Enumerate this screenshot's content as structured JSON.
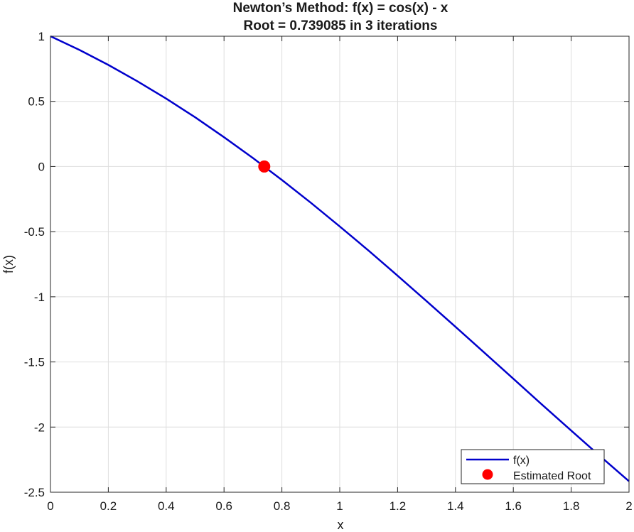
{
  "chart_data": {
    "type": "line",
    "title": [
      "Newton’s Method: f(x) = cos(x) - x",
      "Root = 0.739085 in 3 iterations"
    ],
    "xlabel": "x",
    "ylabel": "f(x)",
    "xlim": [
      0,
      2
    ],
    "ylim": [
      -2.5,
      1
    ],
    "xticks": [
      0,
      0.2,
      0.4,
      0.6,
      0.8,
      1,
      1.2,
      1.4,
      1.6,
      1.8,
      2
    ],
    "xtick_labels": [
      "0",
      "0.2",
      "0.4",
      "0.6",
      "0.8",
      "1",
      "1.2",
      "1.4",
      "1.6",
      "1.8",
      "2"
    ],
    "yticks": [
      1,
      0.5,
      0,
      -0.5,
      -1,
      -1.5,
      -2,
      -2.5
    ],
    "ytick_labels": [
      "1",
      "0.5",
      "0",
      "-0.5",
      "-1",
      "-1.5",
      "-2",
      "-2.5"
    ],
    "grid": true,
    "legend_position": "bottom-right",
    "series": [
      {
        "name": "f(x)",
        "style": "line",
        "color": "#0000cc",
        "x": [
          0,
          0.1,
          0.2,
          0.3,
          0.4,
          0.5,
          0.6,
          0.7,
          0.8,
          0.9,
          1.0,
          1.1,
          1.2,
          1.3,
          1.4,
          1.5,
          1.6,
          1.7,
          1.8,
          1.9,
          2.0
        ],
        "y": [
          1.0,
          0.895,
          0.78,
          0.655,
          0.521,
          0.378,
          0.225,
          0.065,
          -0.103,
          -0.278,
          -0.46,
          -0.646,
          -0.838,
          -1.033,
          -1.23,
          -1.429,
          -1.629,
          -1.829,
          -2.027,
          -2.223,
          -2.416
        ]
      },
      {
        "name": "Estimated Root",
        "style": "marker",
        "color": "#ff0000",
        "x": [
          0.739085
        ],
        "y": [
          0
        ]
      }
    ]
  }
}
